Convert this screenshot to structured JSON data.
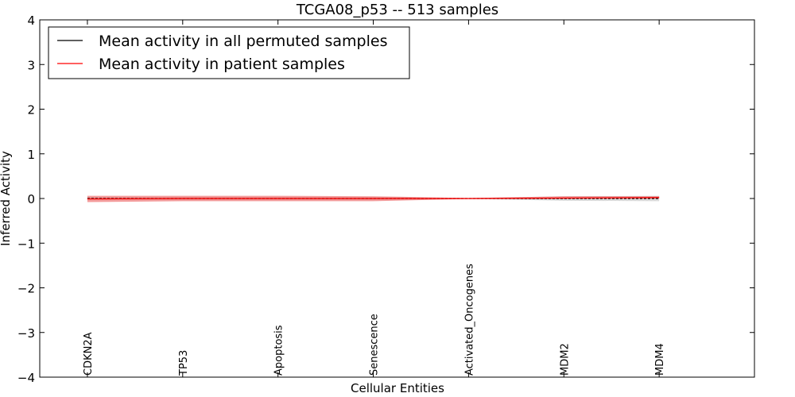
{
  "chart_data": {
    "type": "line",
    "title": "TCGA08_p53 -- 513 samples",
    "xlabel": "Cellular Entities",
    "ylabel": "Inferred Activity",
    "ylim": [
      -4,
      4
    ],
    "xlim": [
      -0.5,
      7.0
    ],
    "yticks": [
      4,
      3,
      2,
      1,
      0,
      -1,
      -2,
      -3,
      -4
    ],
    "ytick_labels": [
      "4",
      "3",
      "2",
      "1",
      "0",
      "−1",
      "−2",
      "−3",
      "−4"
    ],
    "categories": [
      "CDKN2A",
      "TP53",
      "Apoptosis",
      "Senescence",
      "Activated_Oncogenes",
      "MDM2",
      "MDM4"
    ],
    "legend_position": "top-left",
    "series": [
      {
        "name": "Mean activity in all permuted samples",
        "color": "#000000",
        "style": "dashed",
        "values": [
          0.0,
          0.0,
          0.0,
          0.0,
          0.0,
          0.0,
          0.0
        ],
        "band_lower": [
          -0.03,
          -0.03,
          -0.03,
          -0.03,
          -0.01,
          -0.05,
          -0.06
        ],
        "band_upper": [
          0.03,
          0.03,
          0.03,
          0.03,
          0.01,
          0.05,
          0.06
        ],
        "band_color": "#aaaaaa"
      },
      {
        "name": "Mean activity in patient samples",
        "color": "#ff0000",
        "style": "solid",
        "values": [
          -0.01,
          0.0,
          0.0,
          0.0,
          0.0,
          0.01,
          0.02
        ],
        "band_lower": [
          -0.08,
          -0.06,
          -0.06,
          -0.06,
          -0.01,
          -0.01,
          0.0
        ],
        "band_upper": [
          0.06,
          0.06,
          0.06,
          0.05,
          0.01,
          0.05,
          0.05
        ],
        "band_color": "#ee6666"
      }
    ]
  }
}
